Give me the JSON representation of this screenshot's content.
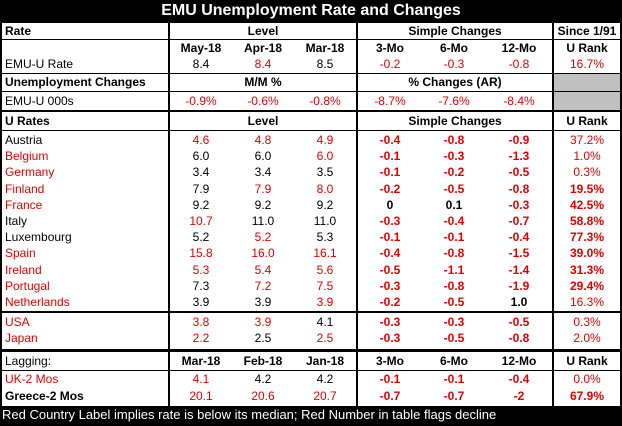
{
  "title": "EMU Unemployment Rate and Changes",
  "colors": {
    "red": "#e00000",
    "black": "#000000",
    "gray": "#c0c0c0"
  },
  "top": {
    "rate_label": "Rate",
    "level_label": "Level",
    "simple_changes_label": "Simple Changes",
    "since_label": "Since 1/91",
    "months": [
      "May-18",
      "Apr-18",
      "Mar-18"
    ],
    "changes": [
      "3-Mo",
      "6-Mo",
      "12-Mo"
    ],
    "u_rank_label": "U Rank",
    "emu_rate": {
      "name": "EMU-U Rate",
      "levels": [
        "8.4",
        "8.4",
        "8.5"
      ],
      "changes": [
        "-0.2",
        "-0.3",
        "-0.8"
      ],
      "rank": "16.7%"
    },
    "unemp_changes_label": "Unemployment Changes",
    "mm_label": "M/M %",
    "pct_changes_label": "% Changes (AR)",
    "emu_000s": {
      "name": "EMU-U 000s",
      "levels": [
        "-0.9%",
        "-0.6%",
        "-0.8%"
      ],
      "changes": [
        "-8.7%",
        "-7.6%",
        "-8.4%"
      ]
    }
  },
  "urates": {
    "label": "U Rates",
    "level_label": "Level",
    "simple_changes_label": "Simple Changes",
    "u_rank_label": "U Rank",
    "rows": [
      {
        "name": "Austria",
        "nc": "k",
        "levels": [
          "4.6",
          "4.8",
          "4.9"
        ],
        "lc": [
          "r",
          "r",
          "r"
        ],
        "changes": [
          "-0.4",
          "-0.8",
          "-0.9"
        ],
        "cc": [
          "r",
          "r",
          "r"
        ],
        "rank": "37.2%",
        "rb": false
      },
      {
        "name": "Belgium",
        "nc": "r",
        "levels": [
          "6.0",
          "6.0",
          "6.0"
        ],
        "lc": [
          "k",
          "k",
          "r"
        ],
        "changes": [
          "-0.1",
          "-0.3",
          "-1.3"
        ],
        "cc": [
          "r",
          "r",
          "r"
        ],
        "rank": "1.0%",
        "rb": false
      },
      {
        "name": "Germany",
        "nc": "r",
        "levels": [
          "3.4",
          "3.4",
          "3.5"
        ],
        "lc": [
          "k",
          "k",
          "k"
        ],
        "changes": [
          "-0.1",
          "-0.2",
          "-0.5"
        ],
        "cc": [
          "r",
          "r",
          "r"
        ],
        "rank": "0.3%",
        "rb": false
      },
      {
        "name": "Finland",
        "nc": "r",
        "levels": [
          "7.9",
          "7.9",
          "8.0"
        ],
        "lc": [
          "k",
          "r",
          "r"
        ],
        "changes": [
          "-0.2",
          "-0.5",
          "-0.8"
        ],
        "cc": [
          "r",
          "r",
          "r"
        ],
        "rank": "19.5%",
        "rb": true
      },
      {
        "name": "France",
        "nc": "r",
        "levels": [
          "9.2",
          "9.2",
          "9.2"
        ],
        "lc": [
          "k",
          "k",
          "k"
        ],
        "changes": [
          "0",
          "0.1",
          "-0.3"
        ],
        "cc": [
          "k",
          "k",
          "r"
        ],
        "rank": "42.5%",
        "rb": true
      },
      {
        "name": "Italy",
        "nc": "k",
        "levels": [
          "10.7",
          "11.0",
          "11.0"
        ],
        "lc": [
          "r",
          "k",
          "k"
        ],
        "changes": [
          "-0.3",
          "-0.4",
          "-0.7"
        ],
        "cc": [
          "r",
          "r",
          "r"
        ],
        "rank": "58.8%",
        "rb": true
      },
      {
        "name": "Luxembourg",
        "nc": "k",
        "levels": [
          "5.2",
          "5.2",
          "5.3"
        ],
        "lc": [
          "k",
          "r",
          "k"
        ],
        "changes": [
          "-0.1",
          "-0.1",
          "-0.4"
        ],
        "cc": [
          "r",
          "r",
          "r"
        ],
        "rank": "77.3%",
        "rb": true
      },
      {
        "name": "Spain",
        "nc": "r",
        "levels": [
          "15.8",
          "16.0",
          "16.1"
        ],
        "lc": [
          "r",
          "r",
          "r"
        ],
        "changes": [
          "-0.4",
          "-0.8",
          "-1.5"
        ],
        "cc": [
          "r",
          "r",
          "r"
        ],
        "rank": "39.0%",
        "rb": true
      },
      {
        "name": "Ireland",
        "nc": "r",
        "levels": [
          "5.3",
          "5.4",
          "5.6"
        ],
        "lc": [
          "r",
          "r",
          "r"
        ],
        "changes": [
          "-0.5",
          "-1.1",
          "-1.4"
        ],
        "cc": [
          "r",
          "r",
          "r"
        ],
        "rank": "31.3%",
        "rb": true
      },
      {
        "name": "Portugal",
        "nc": "r",
        "levels": [
          "7.3",
          "7.2",
          "7.5"
        ],
        "lc": [
          "k",
          "r",
          "r"
        ],
        "changes": [
          "-0.3",
          "-0.8",
          "-1.9"
        ],
        "cc": [
          "r",
          "r",
          "r"
        ],
        "rank": "29.4%",
        "rb": true
      },
      {
        "name": "Netherlands",
        "nc": "r",
        "levels": [
          "3.9",
          "3.9",
          "3.9"
        ],
        "lc": [
          "k",
          "k",
          "r"
        ],
        "changes": [
          "-0.2",
          "-0.5",
          "1.0"
        ],
        "cc": [
          "r",
          "r",
          "k"
        ],
        "rank": "16.3%",
        "rb": false
      }
    ],
    "other": [
      {
        "name": "USA",
        "nc": "r",
        "levels": [
          "3.8",
          "3.9",
          "4.1"
        ],
        "lc": [
          "r",
          "r",
          "k"
        ],
        "changes": [
          "-0.3",
          "-0.3",
          "-0.5"
        ],
        "cc": [
          "r",
          "r",
          "r"
        ],
        "rank": "0.3%",
        "rb": false
      },
      {
        "name": "Japan",
        "nc": "r",
        "levels": [
          "2.2",
          "2.5",
          "2.5"
        ],
        "lc": [
          "r",
          "k",
          "r"
        ],
        "changes": [
          "-0.3",
          "-0.5",
          "-0.8"
        ],
        "cc": [
          "r",
          "r",
          "r"
        ],
        "rank": "2.0%",
        "rb": false
      }
    ]
  },
  "lagging": {
    "label": "Lagging:",
    "months": [
      "Mar-18",
      "Feb-18",
      "Jan-18"
    ],
    "changes": [
      "3-Mo",
      "6-Mo",
      "12-Mo"
    ],
    "u_rank_label": "U Rank",
    "rows": [
      {
        "name": "UK-2 Mos",
        "nc": "r",
        "nb": false,
        "levels": [
          "4.1",
          "4.2",
          "4.2"
        ],
        "lc": [
          "r",
          "k",
          "k"
        ],
        "changes": [
          "-0.1",
          "-0.1",
          "-0.4"
        ],
        "cc": [
          "r",
          "r",
          "r"
        ],
        "rank": "0.0%",
        "rb": false
      },
      {
        "name": "Greece-2 Mos",
        "nc": "k",
        "nb": true,
        "levels": [
          "20.1",
          "20.6",
          "20.7"
        ],
        "lc": [
          "r",
          "r",
          "r"
        ],
        "changes": [
          "-0.7",
          "-0.7",
          "-2"
        ],
        "cc": [
          "r",
          "r",
          "r"
        ],
        "rank": "67.9%",
        "rb": true
      }
    ]
  },
  "footer": "Red Country Label implies rate is below its median; Red Number in table flags decline"
}
